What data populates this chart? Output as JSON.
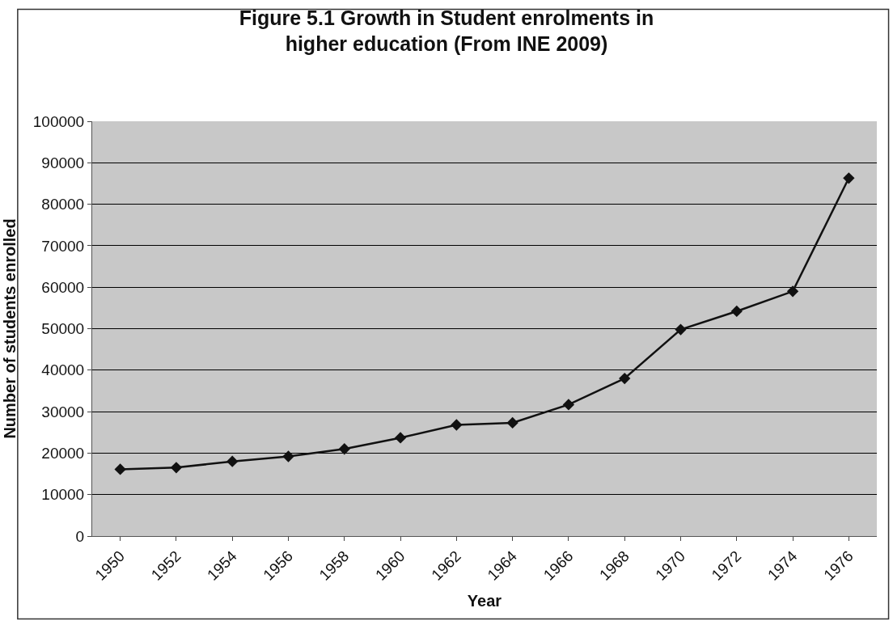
{
  "chart_data": {
    "type": "line",
    "title": "Figure 5.1 Growth in Student enrolments in higher education (From INE 2009)",
    "xlabel": "Year",
    "ylabel": "Number of students enrolled",
    "categories": [
      "1950",
      "1952",
      "1954",
      "1956",
      "1958",
      "1960",
      "1962",
      "1964",
      "1966",
      "1968",
      "1970",
      "1972",
      "1974",
      "1976"
    ],
    "series": [
      {
        "color": "#111111",
        "values": [
          16100,
          16500,
          18000,
          19200,
          21000,
          23700,
          26800,
          27300,
          31700,
          38000,
          49800,
          54200,
          59000,
          86300
        ]
      }
    ],
    "ylim": [
      0,
      100000
    ],
    "yticks": [
      0,
      10000,
      20000,
      30000,
      40000,
      50000,
      60000,
      70000,
      80000,
      90000,
      100000
    ],
    "grid": "y",
    "legend": false,
    "marker": "diamond",
    "line_style": "solid"
  }
}
